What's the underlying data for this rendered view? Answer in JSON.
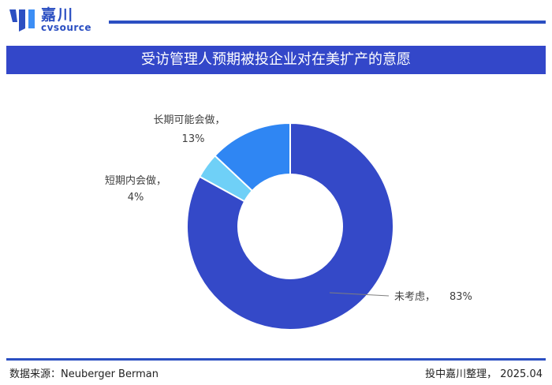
{
  "brand": {
    "name_cn": "嘉川",
    "name_en": "cvsource"
  },
  "title": "受访管理人预期被投企业对在美扩产的意愿",
  "footer": {
    "source": "数据来源：Neuberger Berman",
    "credit": "投中嘉川整理， 2025.04"
  },
  "colors": {
    "accent": "#3347c9",
    "brand": "#2b4fc2"
  },
  "chart_data": {
    "type": "pie",
    "donut": true,
    "title": "受访管理人预期被投企业对在美扩产的意愿",
    "categories": [
      "未考虑",
      "短期内会做",
      "长期可能会做"
    ],
    "values": [
      83,
      4,
      13
    ],
    "units": "%",
    "slice_colors": [
      "#3449c8",
      "#6fd0f7",
      "#2f86f3"
    ],
    "data_labels": [
      {
        "name": "未考虑，",
        "value": "83%"
      },
      {
        "name": "短期内会做，",
        "value": "4%"
      },
      {
        "name": "长期可能会做，",
        "value": "13%"
      }
    ]
  }
}
